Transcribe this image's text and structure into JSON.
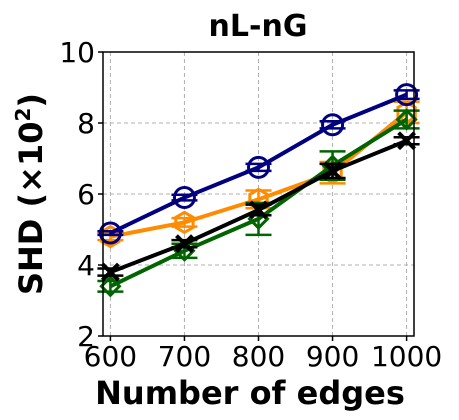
{
  "chart_data": {
    "type": "line",
    "title": "nL-nG",
    "xlabel": "Number of edges",
    "ylabel": "SHD (×10",
    "ylabel_sup": "2",
    "ylabel_tail": ")",
    "x": [
      600,
      700,
      800,
      900,
      1000
    ],
    "xlim": [
      590,
      1010
    ],
    "ylim": [
      2,
      10
    ],
    "xticks": [
      "600",
      "700",
      "800",
      "900",
      "1000"
    ],
    "yticks": [
      "2",
      "4",
      "6",
      "8",
      "10"
    ],
    "grid": true,
    "series": [
      {
        "color": "#ff8c00",
        "marker": "hexagon",
        "values": [
          4.8,
          5.2,
          5.85,
          6.6,
          8.3
        ],
        "err": [
          0.1,
          0.12,
          0.25,
          0.3,
          0.3
        ]
      },
      {
        "color": "#006400",
        "marker": "diamond",
        "values": [
          3.4,
          4.4,
          5.3,
          6.8,
          8.1
        ],
        "err": [
          0.15,
          0.2,
          0.45,
          0.4,
          0.25
        ]
      },
      {
        "color": "#000000",
        "marker": "x",
        "values": [
          3.8,
          4.6,
          5.55,
          6.65,
          7.5
        ],
        "err": [
          0.1,
          0.1,
          0.15,
          0.2,
          0.1
        ]
      },
      {
        "color": "#000080",
        "marker": "circle",
        "values": [
          4.9,
          5.9,
          6.75,
          7.95,
          8.8
        ],
        "err": [
          0.05,
          0.08,
          0.1,
          0.1,
          0.12
        ]
      }
    ]
  }
}
